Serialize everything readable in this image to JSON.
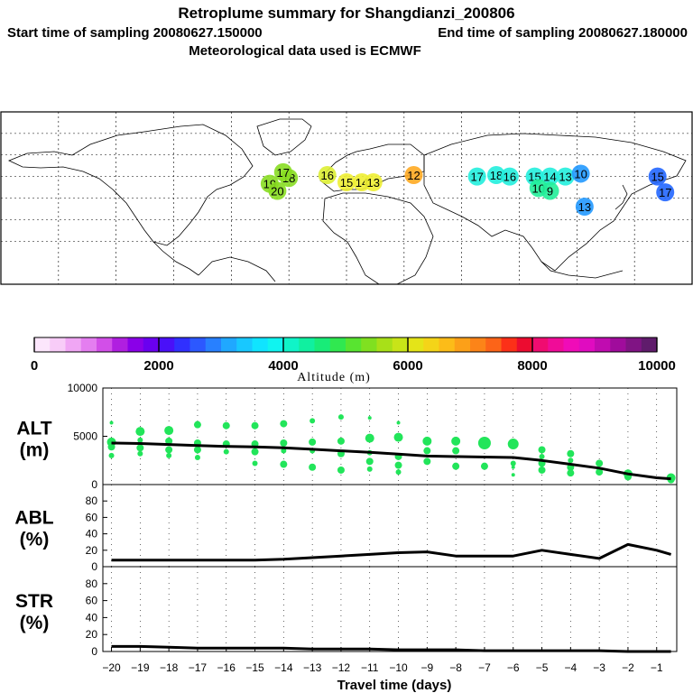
{
  "header": {
    "title": "Retroplume summary for Shangdianzi_200806",
    "start_label": "Start time of sampling 20080627.150000",
    "end_label": "End time of sampling 20080627.180000",
    "met_label": "Meteorological data used is ECMWF"
  },
  "colors": {
    "line": "#000000",
    "point": "#22e55a",
    "frame": "#000000",
    "plume_green": "#33ee66"
  },
  "map": {
    "description_name": "world-map-retroplume",
    "plume_labels": [
      {
        "text": "19",
        "lon": -40,
        "lat": 40,
        "color": "#88dd22"
      },
      {
        "text": "20",
        "lon": -36,
        "lat": 35,
        "color": "#88dd22"
      },
      {
        "text": "18",
        "lon": -30,
        "lat": 44,
        "color": "#88dd22"
      },
      {
        "text": "17",
        "lon": -33,
        "lat": 48,
        "color": "#88dd22"
      },
      {
        "text": "16",
        "lon": -10,
        "lat": 46,
        "color": "#ddee33"
      },
      {
        "text": "15",
        "lon": 0,
        "lat": 41,
        "color": "#eeee33"
      },
      {
        "text": "14",
        "lon": 8,
        "lat": 41,
        "color": "#eeee33"
      },
      {
        "text": "13",
        "lon": 14,
        "lat": 41,
        "color": "#eeee33"
      },
      {
        "text": "12",
        "lon": 35,
        "lat": 46,
        "color": "#ffaa22"
      },
      {
        "text": "17",
        "lon": 68,
        "lat": 45,
        "color": "#22eedd"
      },
      {
        "text": "18",
        "lon": 78,
        "lat": 46,
        "color": "#22eedd"
      },
      {
        "text": "16",
        "lon": 85,
        "lat": 45,
        "color": "#22eedd"
      },
      {
        "text": "15",
        "lon": 98,
        "lat": 45,
        "color": "#22eedd"
      },
      {
        "text": "14",
        "lon": 106,
        "lat": 45,
        "color": "#22eedd"
      },
      {
        "text": "13",
        "lon": 114,
        "lat": 45,
        "color": "#22eedd"
      },
      {
        "text": "10",
        "lon": 100,
        "lat": 37,
        "color": "#22ee99"
      },
      {
        "text": "9",
        "lon": 106,
        "lat": 35,
        "color": "#22ee99"
      },
      {
        "text": "10",
        "lon": 122,
        "lat": 47,
        "color": "#2299ff"
      },
      {
        "text": "13",
        "lon": 124,
        "lat": 24,
        "color": "#2299ff"
      },
      {
        "text": "15",
        "lon": 162,
        "lat": 45,
        "color": "#2266ff"
      },
      {
        "text": "17",
        "lon": 166,
        "lat": 34,
        "color": "#2266ff"
      }
    ]
  },
  "colorbar": {
    "label": "Altitude (m)",
    "ticks": [
      "0",
      "2000",
      "4000",
      "6000",
      "8000",
      "10000"
    ],
    "colors": [
      "#fce6fc",
      "#f8ccf8",
      "#f0a6f4",
      "#e47ef0",
      "#d24fe8",
      "#b01fe0",
      "#8a00e8",
      "#6a00f0",
      "#4a10f8",
      "#3030ff",
      "#2c58ff",
      "#2880ff",
      "#20a8ff",
      "#18c8ff",
      "#10e4ff",
      "#10f4f0",
      "#10f4c8",
      "#10f0a0",
      "#18ec78",
      "#30e850",
      "#58e430",
      "#80e020",
      "#a8e018",
      "#c8e418",
      "#e4e418",
      "#f4d418",
      "#fcbc18",
      "#fca018",
      "#fc8418",
      "#fc6418",
      "#fc3018",
      "#ec0c30",
      "#f00c70",
      "#f00c98",
      "#f00cb8",
      "#e00cc0",
      "#c00cb0",
      "#a00c9c",
      "#801484",
      "#601c6c"
    ]
  },
  "chart_data": [
    {
      "type": "line",
      "panel": "ALT",
      "ylabel": "ALT\n(m)",
      "ylabel_line1": "ALT",
      "ylabel_line2": "(m)",
      "ylim": [
        0,
        10000
      ],
      "yticks": [
        "0",
        "5000",
        "10000"
      ],
      "x": [
        -20,
        -19,
        -18,
        -17,
        -16,
        -15,
        -14,
        -13,
        -12,
        -11,
        -10,
        -9,
        -8,
        -7,
        -6,
        -5,
        -4,
        -3,
        -2,
        -1,
        -0.5
      ],
      "series": [
        {
          "name": "median altitude",
          "values": [
            4300,
            4250,
            4150,
            4050,
            3950,
            3900,
            3800,
            3650,
            3500,
            3350,
            3150,
            2950,
            2900,
            2850,
            2800,
            2500,
            2100,
            1700,
            1100,
            700,
            600
          ]
        }
      ],
      "points": [
        {
          "x": -20,
          "y": 6400,
          "r": 2
        },
        {
          "x": -20,
          "y": 4400,
          "r": 5
        },
        {
          "x": -20,
          "y": 3900,
          "r": 4
        },
        {
          "x": -20,
          "y": 3000,
          "r": 3
        },
        {
          "x": -19,
          "y": 5500,
          "r": 5
        },
        {
          "x": -19,
          "y": 4600,
          "r": 3
        },
        {
          "x": -19,
          "y": 3800,
          "r": 4
        },
        {
          "x": -19,
          "y": 3200,
          "r": 3
        },
        {
          "x": -18,
          "y": 5600,
          "r": 5
        },
        {
          "x": -18,
          "y": 4500,
          "r": 4
        },
        {
          "x": -18,
          "y": 3600,
          "r": 4
        },
        {
          "x": -18,
          "y": 3000,
          "r": 3
        },
        {
          "x": -17,
          "y": 6200,
          "r": 4
        },
        {
          "x": -17,
          "y": 4300,
          "r": 4
        },
        {
          "x": -17,
          "y": 3600,
          "r": 4
        },
        {
          "x": -17,
          "y": 2800,
          "r": 3
        },
        {
          "x": -16,
          "y": 6100,
          "r": 4
        },
        {
          "x": -16,
          "y": 4200,
          "r": 4
        },
        {
          "x": -16,
          "y": 3400,
          "r": 3
        },
        {
          "x": -15,
          "y": 6100,
          "r": 4
        },
        {
          "x": -15,
          "y": 4200,
          "r": 4
        },
        {
          "x": -15,
          "y": 3400,
          "r": 4
        },
        {
          "x": -15,
          "y": 2200,
          "r": 3
        },
        {
          "x": -14,
          "y": 6300,
          "r": 4
        },
        {
          "x": -14,
          "y": 4300,
          "r": 4
        },
        {
          "x": -14,
          "y": 3500,
          "r": 3
        },
        {
          "x": -14,
          "y": 2100,
          "r": 4
        },
        {
          "x": -13,
          "y": 6600,
          "r": 3
        },
        {
          "x": -13,
          "y": 4400,
          "r": 4
        },
        {
          "x": -13,
          "y": 3500,
          "r": 3
        },
        {
          "x": -13,
          "y": 1800,
          "r": 4
        },
        {
          "x": -12,
          "y": 7000,
          "r": 3
        },
        {
          "x": -12,
          "y": 4500,
          "r": 4
        },
        {
          "x": -12,
          "y": 3200,
          "r": 4
        },
        {
          "x": -12,
          "y": 1500,
          "r": 4
        },
        {
          "x": -11,
          "y": 6900,
          "r": 2
        },
        {
          "x": -11,
          "y": 4800,
          "r": 5
        },
        {
          "x": -11,
          "y": 3300,
          "r": 3
        },
        {
          "x": -11,
          "y": 2400,
          "r": 4
        },
        {
          "x": -11,
          "y": 1600,
          "r": 3
        },
        {
          "x": -10,
          "y": 6400,
          "r": 2
        },
        {
          "x": -10,
          "y": 4900,
          "r": 5
        },
        {
          "x": -10,
          "y": 2900,
          "r": 4
        },
        {
          "x": -10,
          "y": 2000,
          "r": 4
        },
        {
          "x": -10,
          "y": 1300,
          "r": 3
        },
        {
          "x": -9,
          "y": 4500,
          "r": 5
        },
        {
          "x": -9,
          "y": 3500,
          "r": 4
        },
        {
          "x": -9,
          "y": 2400,
          "r": 4
        },
        {
          "x": -8,
          "y": 4500,
          "r": 5
        },
        {
          "x": -8,
          "y": 3500,
          "r": 4
        },
        {
          "x": -8,
          "y": 1900,
          "r": 4
        },
        {
          "x": -7,
          "y": 4300,
          "r": 7
        },
        {
          "x": -7,
          "y": 1900,
          "r": 4
        },
        {
          "x": -6,
          "y": 4200,
          "r": 6
        },
        {
          "x": -6,
          "y": 2200,
          "r": 3
        },
        {
          "x": -6,
          "y": 1800,
          "r": 2
        },
        {
          "x": -6,
          "y": 1000,
          "r": 2
        },
        {
          "x": -5,
          "y": 3600,
          "r": 4
        },
        {
          "x": -5,
          "y": 2900,
          "r": 3
        },
        {
          "x": -5,
          "y": 2200,
          "r": 4
        },
        {
          "x": -5,
          "y": 1500,
          "r": 4
        },
        {
          "x": -4,
          "y": 3200,
          "r": 4
        },
        {
          "x": -4,
          "y": 2500,
          "r": 3
        },
        {
          "x": -4,
          "y": 1800,
          "r": 4
        },
        {
          "x": -4,
          "y": 1200,
          "r": 4
        },
        {
          "x": -3,
          "y": 2200,
          "r": 4
        },
        {
          "x": -3,
          "y": 1300,
          "r": 4
        },
        {
          "x": -2,
          "y": 1100,
          "r": 5
        },
        {
          "x": -2,
          "y": 800,
          "r": 4
        },
        {
          "x": -0.5,
          "y": 700,
          "r": 5
        },
        {
          "x": -0.5,
          "y": 500,
          "r": 4
        }
      ]
    },
    {
      "type": "line",
      "panel": "ABL",
      "ylabel_line1": "ABL",
      "ylabel_line2": "(%)",
      "ylim": [
        0,
        100
      ],
      "yticks": [
        "0",
        "20",
        "40",
        "60",
        "80"
      ],
      "x": [
        -20,
        -19,
        -18,
        -17,
        -16,
        -15,
        -14,
        -13,
        -12,
        -11,
        -10,
        -9,
        -8,
        -7,
        -6,
        -5,
        -4,
        -3,
        -2,
        -1,
        -0.5
      ],
      "series": [
        {
          "name": "ABL fraction",
          "values": [
            8,
            8,
            8,
            8,
            8,
            8,
            9,
            11,
            13,
            15,
            17,
            18,
            13,
            13,
            13,
            20,
            15,
            10,
            27,
            20,
            15
          ]
        }
      ]
    },
    {
      "type": "line",
      "panel": "STR",
      "ylabel_line1": "STR",
      "ylabel_line2": "(%)",
      "ylim": [
        0,
        100
      ],
      "yticks": [
        "0",
        "20",
        "40",
        "60",
        "80"
      ],
      "xlabel": "Travel time (days)",
      "xticks": [
        "−20",
        "−19",
        "−18",
        "−17",
        "−16",
        "−15",
        "−14",
        "−13",
        "−12",
        "−11",
        "−10",
        "−9",
        "−8",
        "−7",
        "−6",
        "−5",
        "−4",
        "−3",
        "−2",
        "−1"
      ],
      "x": [
        -20,
        -19,
        -18,
        -17,
        -16,
        -15,
        -14,
        -13,
        -12,
        -11,
        -10,
        -9,
        -8,
        -7,
        -6,
        -5,
        -4,
        -3,
        -2,
        -1,
        -0.5
      ],
      "series": [
        {
          "name": "stratosphere fraction",
          "values": [
            6,
            6,
            5,
            4,
            4,
            4,
            4,
            3,
            3,
            3,
            2,
            2,
            2,
            1,
            1,
            1,
            1,
            1,
            0,
            0,
            0
          ]
        }
      ]
    }
  ]
}
